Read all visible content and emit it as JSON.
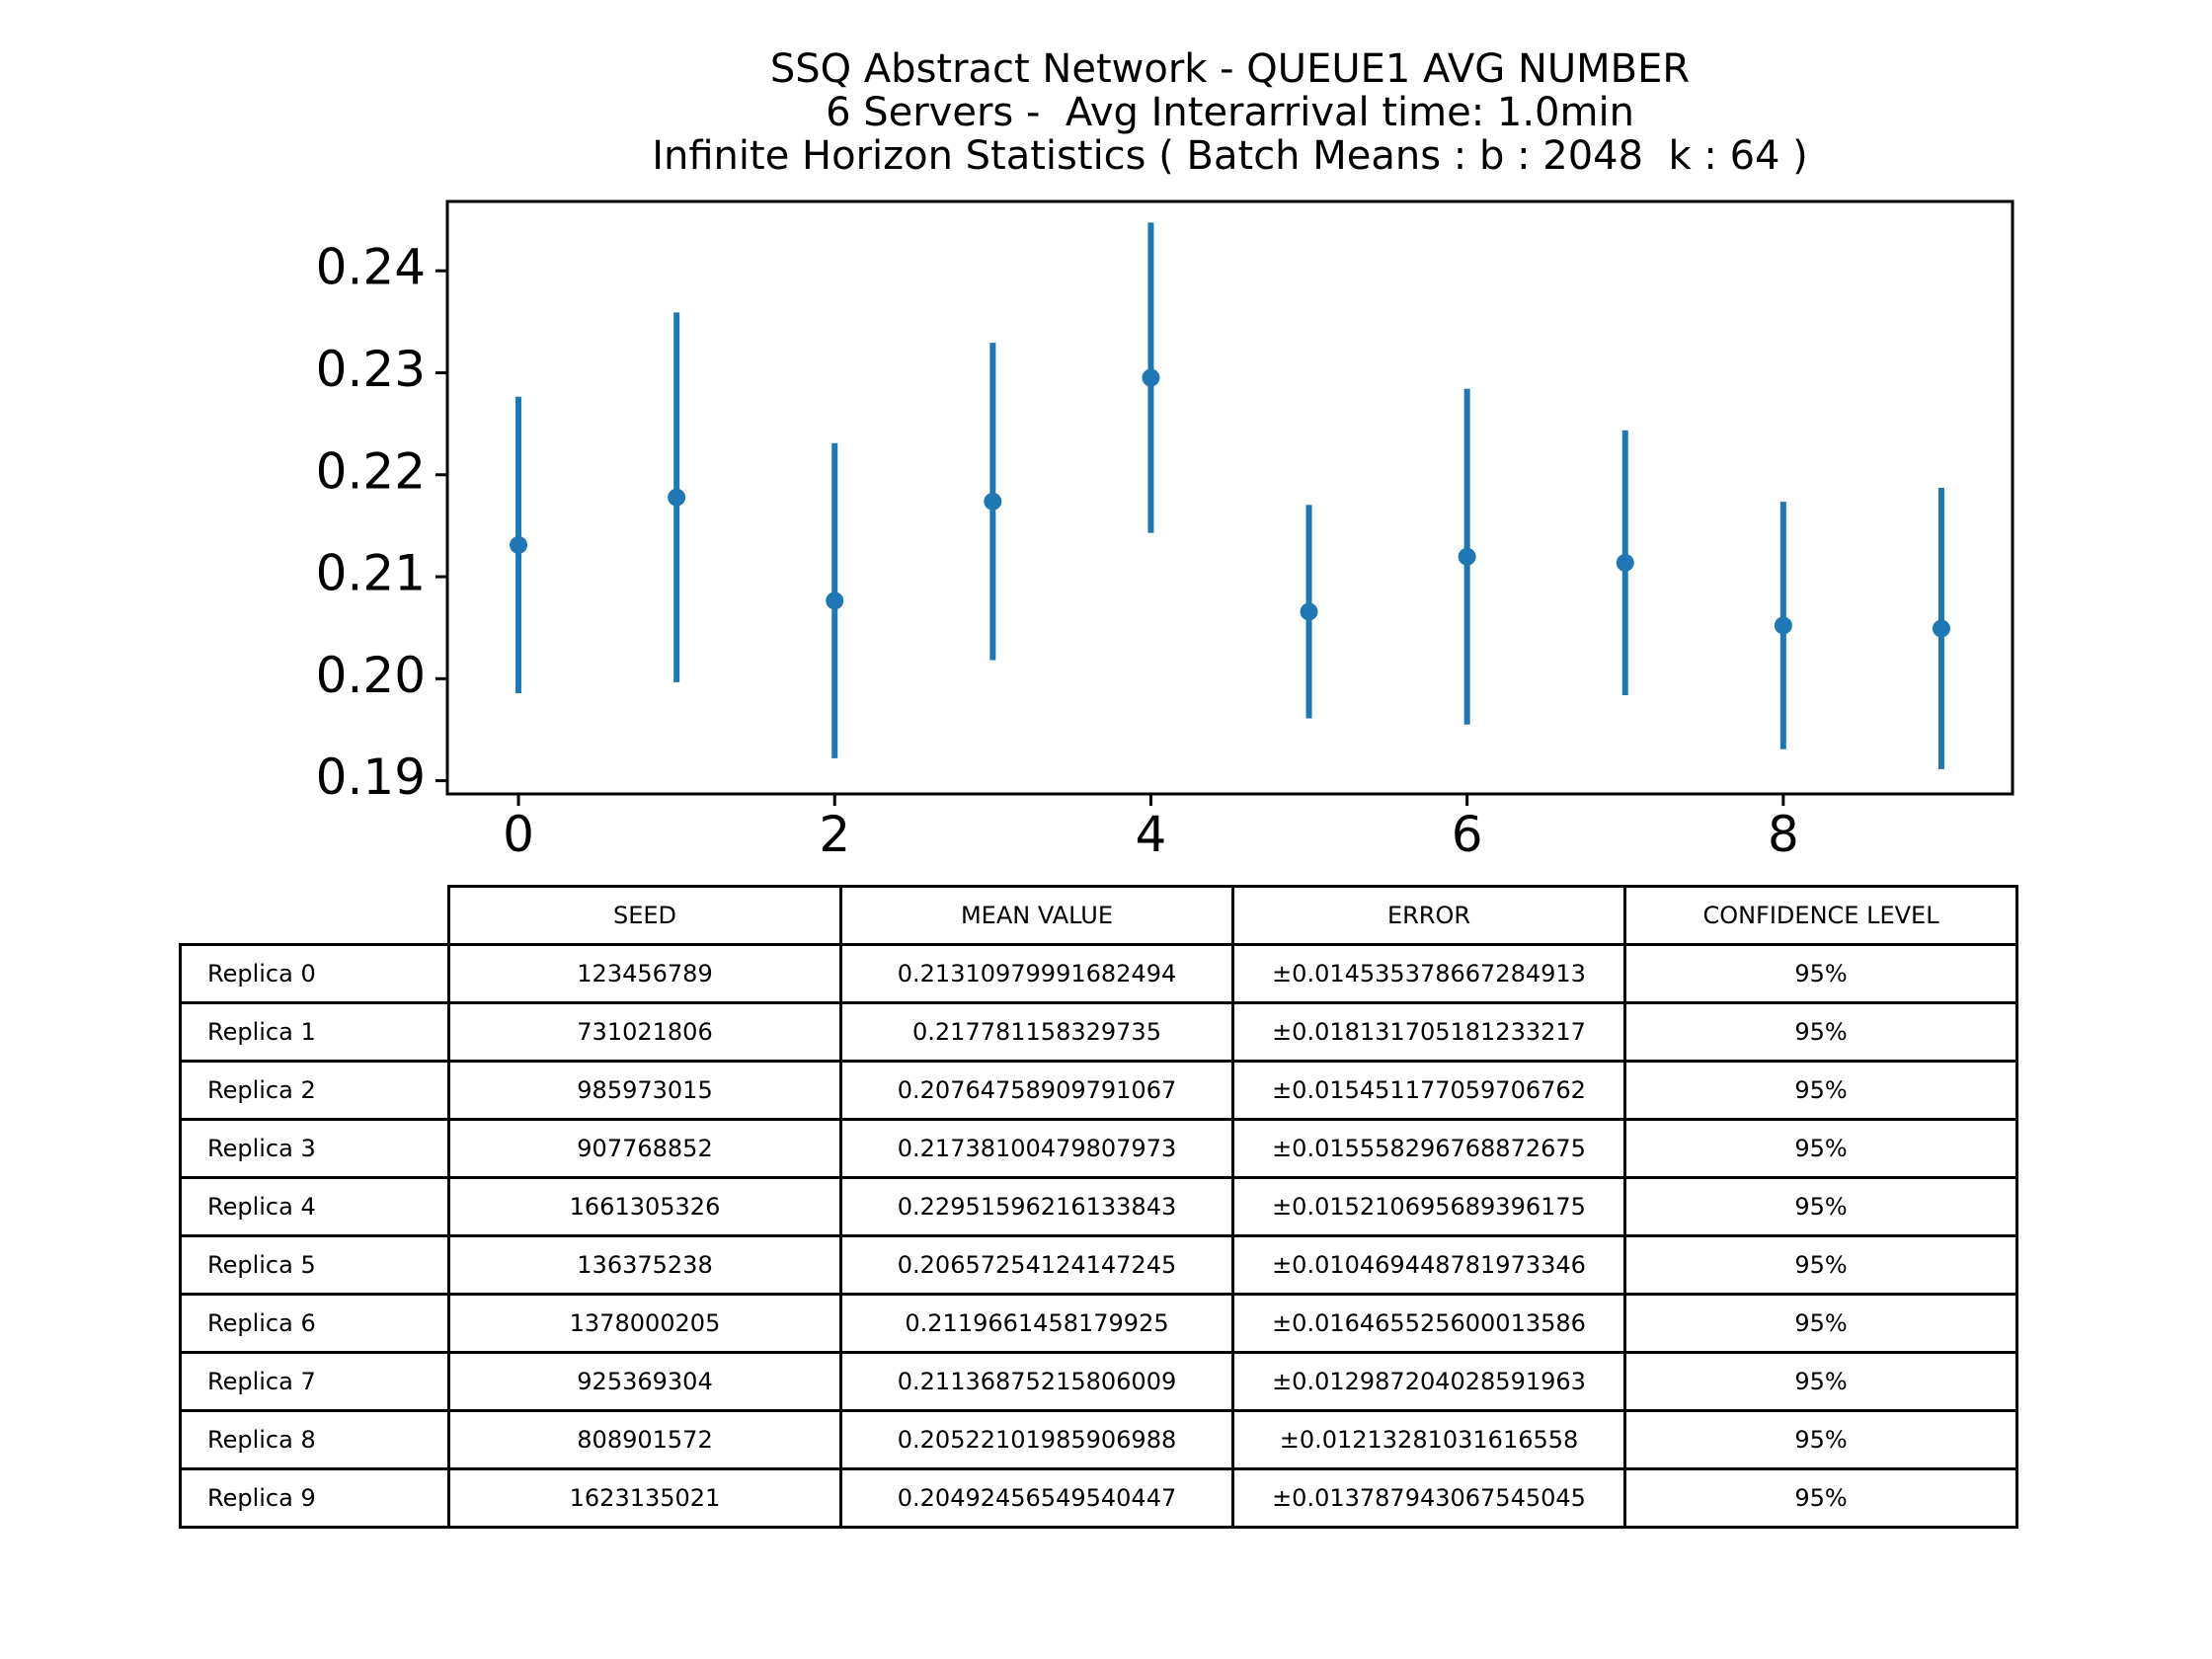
{
  "chart_data": {
    "type": "scatter",
    "title_lines": [
      "SSQ Abstract Network - QUEUE1 AVG NUMBER",
      "6 Servers -  Avg Interarrival time: 1.0min",
      "Infinite Horizon Statistics ( Batch Means : b : 2048  k : 64 )"
    ],
    "xlabel": "",
    "ylabel": "",
    "x": [
      0,
      1,
      2,
      3,
      4,
      5,
      6,
      7,
      8,
      9
    ],
    "y": [
      0.21310979991682494,
      0.217781158329735,
      0.20764758909791067,
      0.21738100479807973,
      0.22951596216133843,
      0.20657254124147245,
      0.2119661458179925,
      0.21136875215806009,
      0.20522101985906988,
      0.20492456549540447
    ],
    "yerr": [
      0.014535378667284913,
      0.018131705181233217,
      0.015451177059706762,
      0.015558296768872675,
      0.015210695689396175,
      0.010469448781973346,
      0.016465525600013586,
      0.012987204028591963,
      0.01213281031616558,
      0.013787943067545045
    ],
    "xlim": [
      -0.45,
      9.45
    ],
    "ylim": [
      0.1887,
      0.2468
    ],
    "xticks": [
      0,
      2,
      4,
      6,
      8
    ],
    "xtick_labels": [
      "0",
      "2",
      "4",
      "6",
      "8"
    ],
    "yticks": [
      0.19,
      0.2,
      0.21,
      0.22,
      0.23,
      0.24
    ],
    "ytick_labels": [
      "0.19",
      "0.20",
      "0.21",
      "0.22",
      "0.23",
      "0.24"
    ],
    "grid": false,
    "color": "#1f77b4"
  },
  "table": {
    "columns": [
      "SEED",
      "MEAN VALUE",
      "ERROR",
      "CONFIDENCE LEVEL"
    ],
    "rows": [
      {
        "label": "Replica 0",
        "cells": [
          "123456789",
          "0.21310979991682494",
          "±0.014535378667284913",
          "95%"
        ]
      },
      {
        "label": "Replica 1",
        "cells": [
          "731021806",
          "0.217781158329735",
          "±0.018131705181233217",
          "95%"
        ]
      },
      {
        "label": "Replica 2",
        "cells": [
          "985973015",
          "0.20764758909791067",
          "±0.015451177059706762",
          "95%"
        ]
      },
      {
        "label": "Replica 3",
        "cells": [
          "907768852",
          "0.21738100479807973",
          "±0.015558296768872675",
          "95%"
        ]
      },
      {
        "label": "Replica 4",
        "cells": [
          "1661305326",
          "0.22951596216133843",
          "±0.015210695689396175",
          "95%"
        ]
      },
      {
        "label": "Replica 5",
        "cells": [
          "136375238",
          "0.20657254124147245",
          "±0.010469448781973346",
          "95%"
        ]
      },
      {
        "label": "Replica 6",
        "cells": [
          "1378000205",
          "0.2119661458179925",
          "±0.016465525600013586",
          "95%"
        ]
      },
      {
        "label": "Replica 7",
        "cells": [
          "925369304",
          "0.21136875215806009",
          "±0.012987204028591963",
          "95%"
        ]
      },
      {
        "label": "Replica 8",
        "cells": [
          "808901572",
          "0.20522101985906988",
          "±0.01213281031616558",
          "95%"
        ]
      },
      {
        "label": "Replica 9",
        "cells": [
          "1623135021",
          "0.20492456549540447",
          "±0.013787943067545045",
          "95%"
        ]
      }
    ]
  }
}
